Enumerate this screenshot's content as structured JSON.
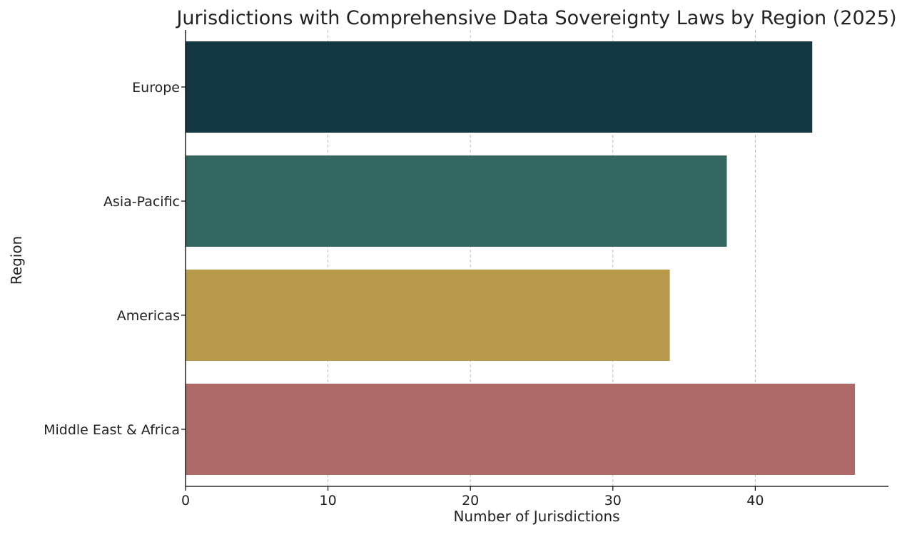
{
  "chart_data": {
    "type": "bar",
    "orientation": "horizontal",
    "title": "Jurisdictions with Comprehensive Data Sovereignty Laws by Region (2025)",
    "xlabel": "Number of Jurisdictions",
    "ylabel": "Region",
    "categories": [
      "Europe",
      "Asia-Pacific",
      "Americas",
      "Middle East & Africa"
    ],
    "values": [
      44,
      38,
      34,
      47
    ],
    "colors": [
      "#133842",
      "#346660",
      "#b89a4c",
      "#ae6a69"
    ],
    "xlim": [
      0,
      49.35
    ],
    "xticks": [
      0,
      10,
      20,
      30,
      40
    ],
    "grid": {
      "x": true,
      "y": false,
      "style": "dashed"
    }
  }
}
